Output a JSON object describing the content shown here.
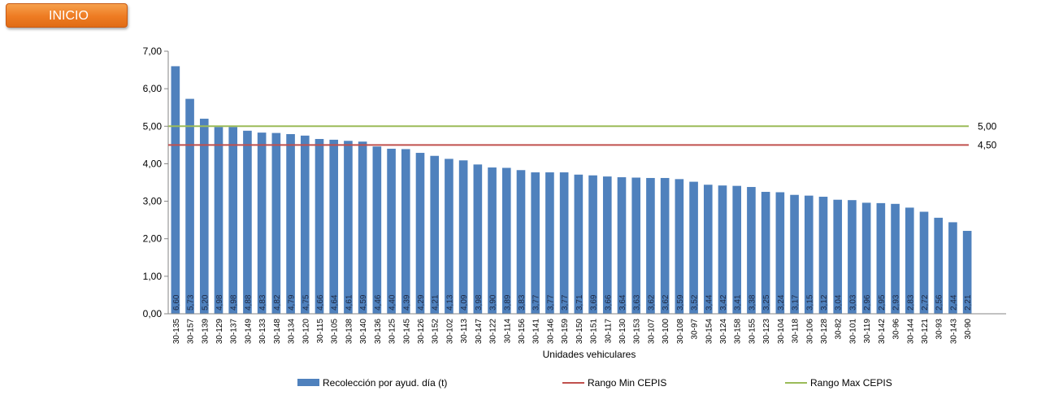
{
  "nav": {
    "inicio_label": "INICIO"
  },
  "chart_data": {
    "type": "bar",
    "xlabel": "Unidades vehiculares",
    "ylabel": "",
    "ylim": [
      0,
      7
    ],
    "ytick_step": 1,
    "ytick_labels": [
      "0,00",
      "1,00",
      "2,00",
      "3,00",
      "4,00",
      "5,00",
      "6,00",
      "7,00"
    ],
    "grid": false,
    "legend_position": "bottom",
    "categories": [
      "30-135",
      "30-157",
      "30-139",
      "30-129",
      "30-137",
      "30-149",
      "30-133",
      "30-148",
      "30-134",
      "30-120",
      "30-115",
      "30-105",
      "30-138",
      "30-140",
      "30-136",
      "30-125",
      "30-145",
      "30-126",
      "30-152",
      "30-102",
      "30-113",
      "30-147",
      "30-122",
      "30-114",
      "30-156",
      "30-141",
      "30-146",
      "30-159",
      "30-150",
      "30-151",
      "30-117",
      "30-130",
      "30-153",
      "30-107",
      "30-100",
      "30-108",
      "30-97",
      "30-154",
      "30-124",
      "30-158",
      "30-155",
      "30-123",
      "30-104",
      "30-118",
      "30-106",
      "30-128",
      "30-82",
      "30-101",
      "30-119",
      "30-142",
      "30-96",
      "30-144",
      "30-121",
      "30-93",
      "30-143",
      "30-90"
    ],
    "series": [
      {
        "name": "Recolección por ayud. día (t)",
        "kind": "bar",
        "color": "#4f81bd",
        "values": [
          6.6,
          5.73,
          5.2,
          4.98,
          4.98,
          4.88,
          4.83,
          4.82,
          4.79,
          4.75,
          4.66,
          4.64,
          4.61,
          4.59,
          4.46,
          4.4,
          4.39,
          4.29,
          4.21,
          4.13,
          4.09,
          3.98,
          3.9,
          3.89,
          3.83,
          3.77,
          3.77,
          3.77,
          3.71,
          3.69,
          3.66,
          3.64,
          3.63,
          3.62,
          3.62,
          3.59,
          3.52,
          3.44,
          3.42,
          3.41,
          3.38,
          3.25,
          3.24,
          3.17,
          3.15,
          3.12,
          3.04,
          3.03,
          2.96,
          2.95,
          2.93,
          2.83,
          2.72,
          2.56,
          2.44,
          2.21
        ],
        "labels": [
          "6,60",
          "5,73",
          "5,20",
          "4,98",
          "4,98",
          "4,88",
          "4,83",
          "4,82",
          "4,79",
          "4,75",
          "4,66",
          "4,64",
          "4,61",
          "4,59",
          "4,46",
          "4,40",
          "4,39",
          "4,29",
          "4,21",
          "4,13",
          "4,09",
          "3,98",
          "3,90",
          "3,89",
          "3,83",
          "3,77",
          "3,77",
          "3,77",
          "3,71",
          "3,69",
          "3,66",
          "3,64",
          "3,63",
          "3,62",
          "3,62",
          "3,59",
          "3,52",
          "3,44",
          "3,42",
          "3,41",
          "3,38",
          "3,25",
          "3,24",
          "3,17",
          "3,15",
          "3,12",
          "3,04",
          "3,03",
          "2,96",
          "2,95",
          "2,93",
          "2,83",
          "2,72",
          "2,56",
          "2,44",
          "2,21"
        ]
      },
      {
        "name": "Rango Min CEPIS",
        "kind": "hline",
        "color": "#c0504d",
        "value": 4.5,
        "label": "4,50"
      },
      {
        "name": "Rango Max CEPIS",
        "kind": "hline",
        "color": "#9bbb59",
        "value": 5.0,
        "label": "5,00"
      }
    ]
  }
}
